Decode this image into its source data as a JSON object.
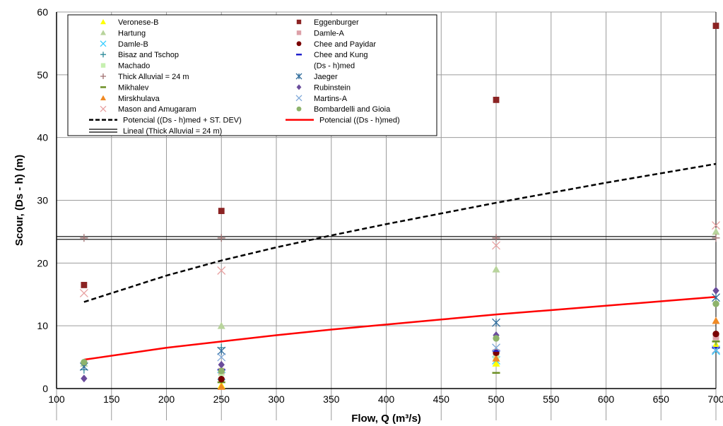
{
  "chart_data": {
    "type": "scatter",
    "xlabel": "Flow, Q (m³/s)",
    "ylabel": "Scour, (Ds - h) (m)",
    "xlim": [
      100,
      700
    ],
    "ylim": [
      0,
      60
    ],
    "x_ticks": [
      100,
      150,
      200,
      250,
      300,
      350,
      400,
      450,
      500,
      550,
      600,
      650,
      700
    ],
    "y_ticks": [
      0,
      10,
      20,
      30,
      40,
      50,
      60
    ],
    "grid": "vertical and horizontal gridlines",
    "legend_position": "top-left inside plot, two columns",
    "series": [
      {
        "name": "Veronese-B",
        "marker": "triangle",
        "color": "#FFFF00",
        "points": [
          [
            250,
            0.5
          ],
          [
            500,
            4.0
          ],
          [
            700,
            7.0
          ]
        ]
      },
      {
        "name": "Hartung",
        "marker": "triangle",
        "color": "#B8D49C",
        "points": [
          [
            125,
            4.0
          ],
          [
            250,
            10.0
          ],
          [
            500,
            19.0
          ],
          [
            700,
            25.0
          ]
        ]
      },
      {
        "name": "Damle-B",
        "marker": "x",
        "color": "#33CCFF",
        "points": [
          [
            250,
            2.0
          ],
          [
            500,
            4.5
          ],
          [
            700,
            6.0
          ]
        ]
      },
      {
        "name": "Bisaz and  Tschop",
        "marker": "plus",
        "color": "#2E8B9A",
        "points": [
          [
            125,
            3.0
          ],
          [
            250,
            6.5
          ],
          [
            500,
            6.0
          ],
          [
            700,
            7.5
          ]
        ]
      },
      {
        "name": "Machado",
        "marker": "square",
        "color": "#C6F0B0",
        "points": [
          [
            250,
            2.5
          ],
          [
            500,
            5.0
          ],
          [
            700,
            8.0
          ]
        ]
      },
      {
        "name": "Thick Alluvial = 24 m",
        "marker": "plus",
        "color": "#A07070",
        "points": [
          [
            125,
            24
          ],
          [
            250,
            24
          ],
          [
            500,
            24
          ],
          [
            700,
            24
          ]
        ]
      },
      {
        "name": "Mikhalev",
        "marker": "dash",
        "color": "#6B8E23",
        "points": [
          [
            250,
            1.0
          ],
          [
            500,
            2.5
          ],
          [
            700,
            7.5
          ]
        ]
      },
      {
        "name": "Mirskhulava",
        "marker": "triangle",
        "color": "#F08A24",
        "points": [
          [
            250,
            0.3
          ],
          [
            500,
            4.8
          ],
          [
            700,
            10.8
          ]
        ]
      },
      {
        "name": "Mason and  Amugaram",
        "marker": "x",
        "color": "#E8A0A0",
        "points": [
          [
            125,
            15.2
          ],
          [
            250,
            18.8
          ],
          [
            500,
            22.8
          ],
          [
            700,
            26.0
          ]
        ]
      },
      {
        "name": "Eggenburger",
        "marker": "square",
        "color": "#8B2323",
        "points": [
          [
            125,
            16.5
          ],
          [
            250,
            28.3
          ],
          [
            500,
            46.0
          ],
          [
            700,
            57.8
          ]
        ]
      },
      {
        "name": "Damle-A",
        "marker": "square",
        "color": "#DDA0A8",
        "points": [
          [
            250,
            2.8
          ],
          [
            500,
            5.8
          ],
          [
            700,
            8.2
          ]
        ]
      },
      {
        "name": "Chee and  Payidar",
        "marker": "circle",
        "color": "#7A0000",
        "points": [
          [
            250,
            1.5
          ],
          [
            500,
            5.7
          ],
          [
            700,
            8.7
          ]
        ]
      },
      {
        "name": " Chee and  Kung",
        "marker": "dash",
        "color": "#2020CC",
        "points": [
          [
            250,
            3.0
          ],
          [
            500,
            6.0
          ],
          [
            700,
            6.5
          ]
        ]
      },
      {
        "name": "(Ds - h)med",
        "marker": "none",
        "color": "#000000",
        "points": []
      },
      {
        "name": "Jaeger",
        "marker": "star",
        "color": "#2E6B9A",
        "points": [
          [
            125,
            3.5
          ],
          [
            250,
            6.0
          ],
          [
            500,
            10.5
          ],
          [
            700,
            14.5
          ]
        ]
      },
      {
        "name": "Rubinstein",
        "marker": "diamond",
        "color": "#6A4C9C",
        "points": [
          [
            125,
            1.6
          ],
          [
            250,
            3.8
          ],
          [
            500,
            8.5
          ],
          [
            700,
            15.6
          ]
        ]
      },
      {
        "name": "Martins-A",
        "marker": "x",
        "color": "#7FA8D8",
        "points": [
          [
            250,
            5.0
          ],
          [
            500,
            6.5
          ],
          [
            700,
            6.2
          ]
        ]
      },
      {
        "name": "Bombardelli and Gioia",
        "marker": "circle",
        "color": "#8DB36B",
        "points": [
          [
            125,
            4.2
          ],
          [
            250,
            2.8
          ],
          [
            500,
            8.0
          ],
          [
            700,
            13.5
          ]
        ]
      }
    ],
    "lines": [
      {
        "name": "Potencial ((Ds - h)med  + ST. DEV)",
        "style": "dashed",
        "color": "#000000",
        "x": [
          125,
          200,
          250,
          300,
          350,
          400,
          450,
          500,
          550,
          600,
          650,
          700
        ],
        "y": [
          13.8,
          18.0,
          20.4,
          22.5,
          24.4,
          26.2,
          27.9,
          29.6,
          31.2,
          32.8,
          34.3,
          35.8
        ]
      },
      {
        "name": "Potencial ((Ds - h)med)",
        "style": "solid",
        "color": "#FF0000",
        "x": [
          125,
          200,
          250,
          300,
          350,
          400,
          450,
          500,
          550,
          600,
          650,
          700
        ],
        "y": [
          4.6,
          6.5,
          7.5,
          8.5,
          9.4,
          10.2,
          11.0,
          11.8,
          12.5,
          13.2,
          13.9,
          14.6
        ]
      },
      {
        "name": "Lineal (Thick Alluvial = 24 m)",
        "style": "double",
        "color": "#000000",
        "x": [
          100,
          700
        ],
        "y": [
          24,
          24
        ]
      }
    ]
  }
}
